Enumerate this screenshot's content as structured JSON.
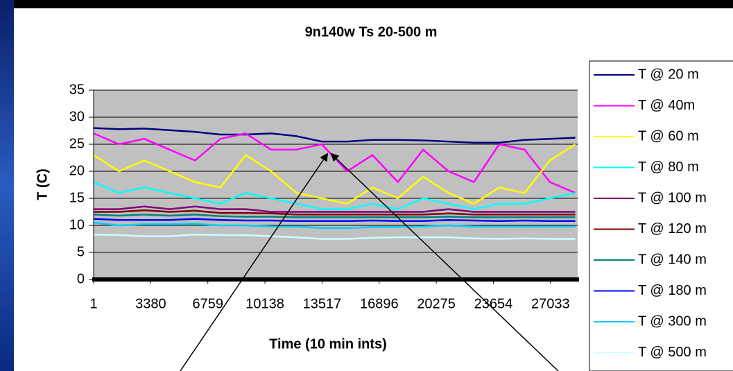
{
  "chart_data": {
    "type": "line",
    "title": "9n140w Ts 20-500 m",
    "x_label": "Time (10 min ints)",
    "y_label": "T (C)",
    "x": [
      1,
      1500,
      3000,
      4500,
      6000,
      7500,
      9000,
      10500,
      12000,
      13500,
      15000,
      16500,
      18000,
      19500,
      21000,
      22500,
      24000,
      25500,
      27000,
      28500
    ],
    "xlim": [
      1,
      28640
    ],
    "xticks": [
      1,
      3380,
      6759,
      10138,
      13517,
      16896,
      20275,
      23654,
      27033
    ],
    "ylim": [
      0,
      35
    ],
    "yticks": [
      0,
      5,
      10,
      15,
      20,
      25,
      30,
      35
    ],
    "grid": true,
    "legend": "right",
    "series": [
      {
        "name": "T @ 20 m",
        "color": "#000080",
        "values": [
          28,
          27.8,
          27.9,
          27.6,
          27.3,
          26.8,
          26.8,
          27,
          26.5,
          25.5,
          25.5,
          25.8,
          25.8,
          25.7,
          25.5,
          25.3,
          25.3,
          25.8,
          26,
          26.2
        ]
      },
      {
        "name": "T @ 40m",
        "color": "#ff00ff",
        "values": [
          27,
          25,
          26,
          24,
          22,
          26,
          27,
          24,
          24,
          25,
          20,
          23,
          18,
          24,
          20,
          18,
          25,
          24,
          18,
          16
        ]
      },
      {
        "name": "T @ 60 m",
        "color": "#ffff00",
        "values": [
          23,
          20,
          22,
          20,
          18,
          17,
          23,
          20,
          16,
          15,
          14,
          17,
          15,
          19,
          16,
          14,
          17,
          16,
          22,
          25
        ]
      },
      {
        "name": "T @ 80 m",
        "color": "#00ffff",
        "values": [
          18,
          16,
          17,
          16,
          15,
          14,
          16,
          15,
          14,
          13,
          13,
          14,
          13,
          15,
          14,
          13,
          14,
          14,
          15,
          16
        ]
      },
      {
        "name": "T @ 100 m",
        "color": "#800080",
        "values": [
          13,
          13,
          13.5,
          13,
          13.5,
          13,
          13,
          12.5,
          12.5,
          12.5,
          12.5,
          12.5,
          12.5,
          12.5,
          13,
          12.5,
          12.5,
          12.5,
          12.5,
          12.5
        ]
      },
      {
        "name": "T @ 120 m",
        "color": "#800000",
        "values": [
          12.5,
          12.5,
          12.8,
          12.5,
          12.7,
          12.3,
          12.3,
          12.2,
          12,
          12,
          12,
          12,
          12,
          12,
          12.2,
          12,
          12,
          12,
          12,
          12
        ]
      },
      {
        "name": "T @ 140 m",
        "color": "#008080",
        "values": [
          12,
          11.8,
          12,
          11.8,
          12,
          11.7,
          11.6,
          11.6,
          11.5,
          11.5,
          11.5,
          11.5,
          11.5,
          11.5,
          11.6,
          11.5,
          11.5,
          11.5,
          11.5,
          11.5
        ]
      },
      {
        "name": "T @ 180 m",
        "color": "#0000ff",
        "values": [
          11.2,
          11,
          11,
          11,
          11.2,
          11,
          10.9,
          10.9,
          10.8,
          10.8,
          10.8,
          10.9,
          10.8,
          10.8,
          11,
          10.9,
          10.8,
          10.9,
          10.8,
          10.8
        ]
      },
      {
        "name": "T @ 300 m",
        "color": "#00ccff",
        "values": [
          10.5,
          10,
          10.2,
          10.2,
          10.3,
          10,
          10,
          9.8,
          9.8,
          9.5,
          9.5,
          9.7,
          9.7,
          9.8,
          10,
          9.8,
          9.8,
          9.8,
          9.8,
          9.8
        ]
      },
      {
        "name": "T @ 500 m",
        "color": "#ccffff",
        "values": [
          8.3,
          8.2,
          8,
          8,
          8.3,
          8.2,
          8.2,
          8,
          7.8,
          7.5,
          7.5,
          7.7,
          7.8,
          7.8,
          7.8,
          7.6,
          7.5,
          7.6,
          7.5,
          7.5
        ]
      }
    ]
  }
}
